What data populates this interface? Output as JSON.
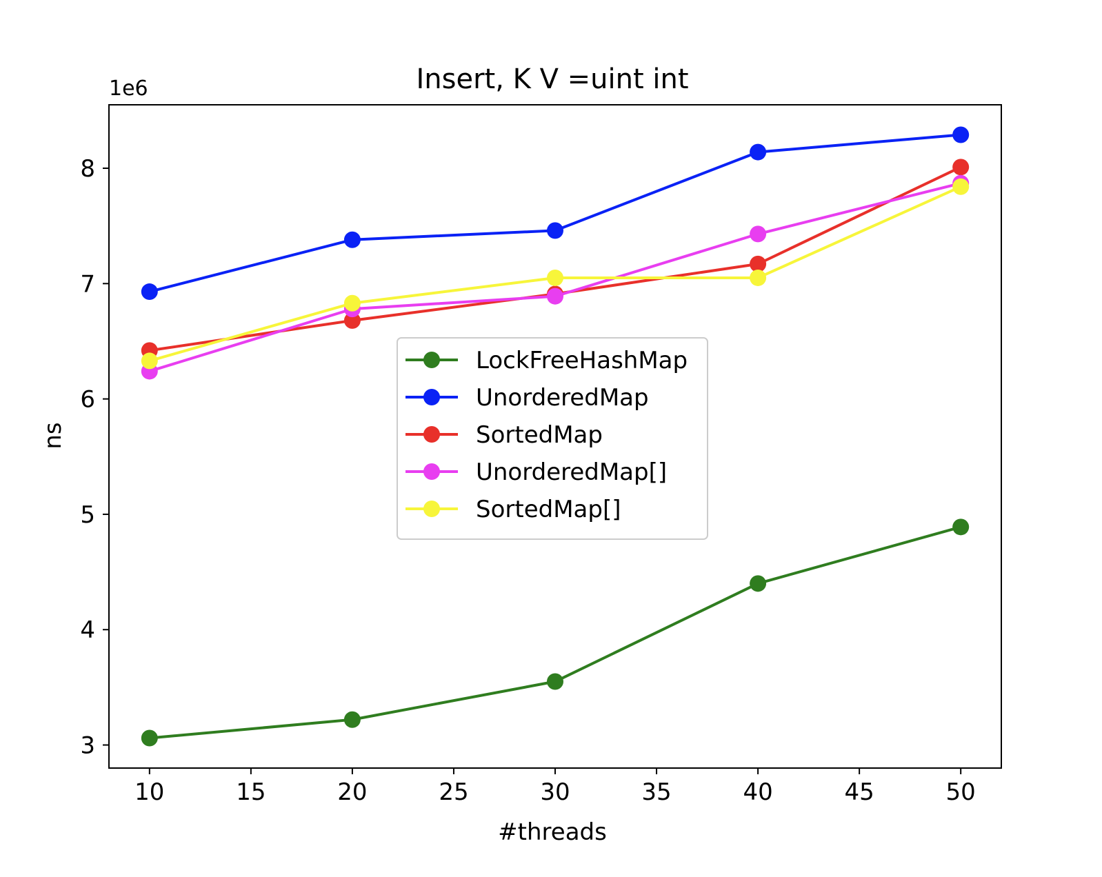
{
  "chart_data": {
    "type": "line",
    "title": "Insert, K V =uint int",
    "xlabel": "#threads",
    "ylabel": "ns",
    "y_offset_label": "1e6",
    "x": [
      10,
      20,
      30,
      40,
      50
    ],
    "xlim": [
      8,
      52
    ],
    "ylim": [
      2.8,
      8.55
    ],
    "y_scale_factor": 1000000,
    "xticks": [
      10,
      15,
      20,
      25,
      30,
      35,
      40,
      45,
      50
    ],
    "yticks": [
      3,
      4,
      5,
      6,
      7,
      8
    ],
    "grid": false,
    "legend_position": "center",
    "series": [
      {
        "name": "LockFreeHashMap",
        "color": "#2f7d1f",
        "values": [
          3.06,
          3.22,
          3.55,
          4.4,
          4.89
        ]
      },
      {
        "name": "UnorderedMap",
        "color": "#0a22f5",
        "values": [
          6.93,
          7.38,
          7.46,
          8.14,
          8.29
        ]
      },
      {
        "name": "SortedMap",
        "color": "#e8302a",
        "values": [
          6.42,
          6.68,
          6.91,
          7.17,
          8.01
        ]
      },
      {
        "name": "UnorderedMap[]",
        "color": "#e83ef0",
        "values": [
          6.24,
          6.78,
          6.89,
          7.43,
          7.87
        ]
      },
      {
        "name": "SortedMap[]",
        "color": "#f7f53a",
        "values": [
          6.33,
          6.83,
          7.05,
          7.05,
          7.84
        ]
      }
    ]
  }
}
